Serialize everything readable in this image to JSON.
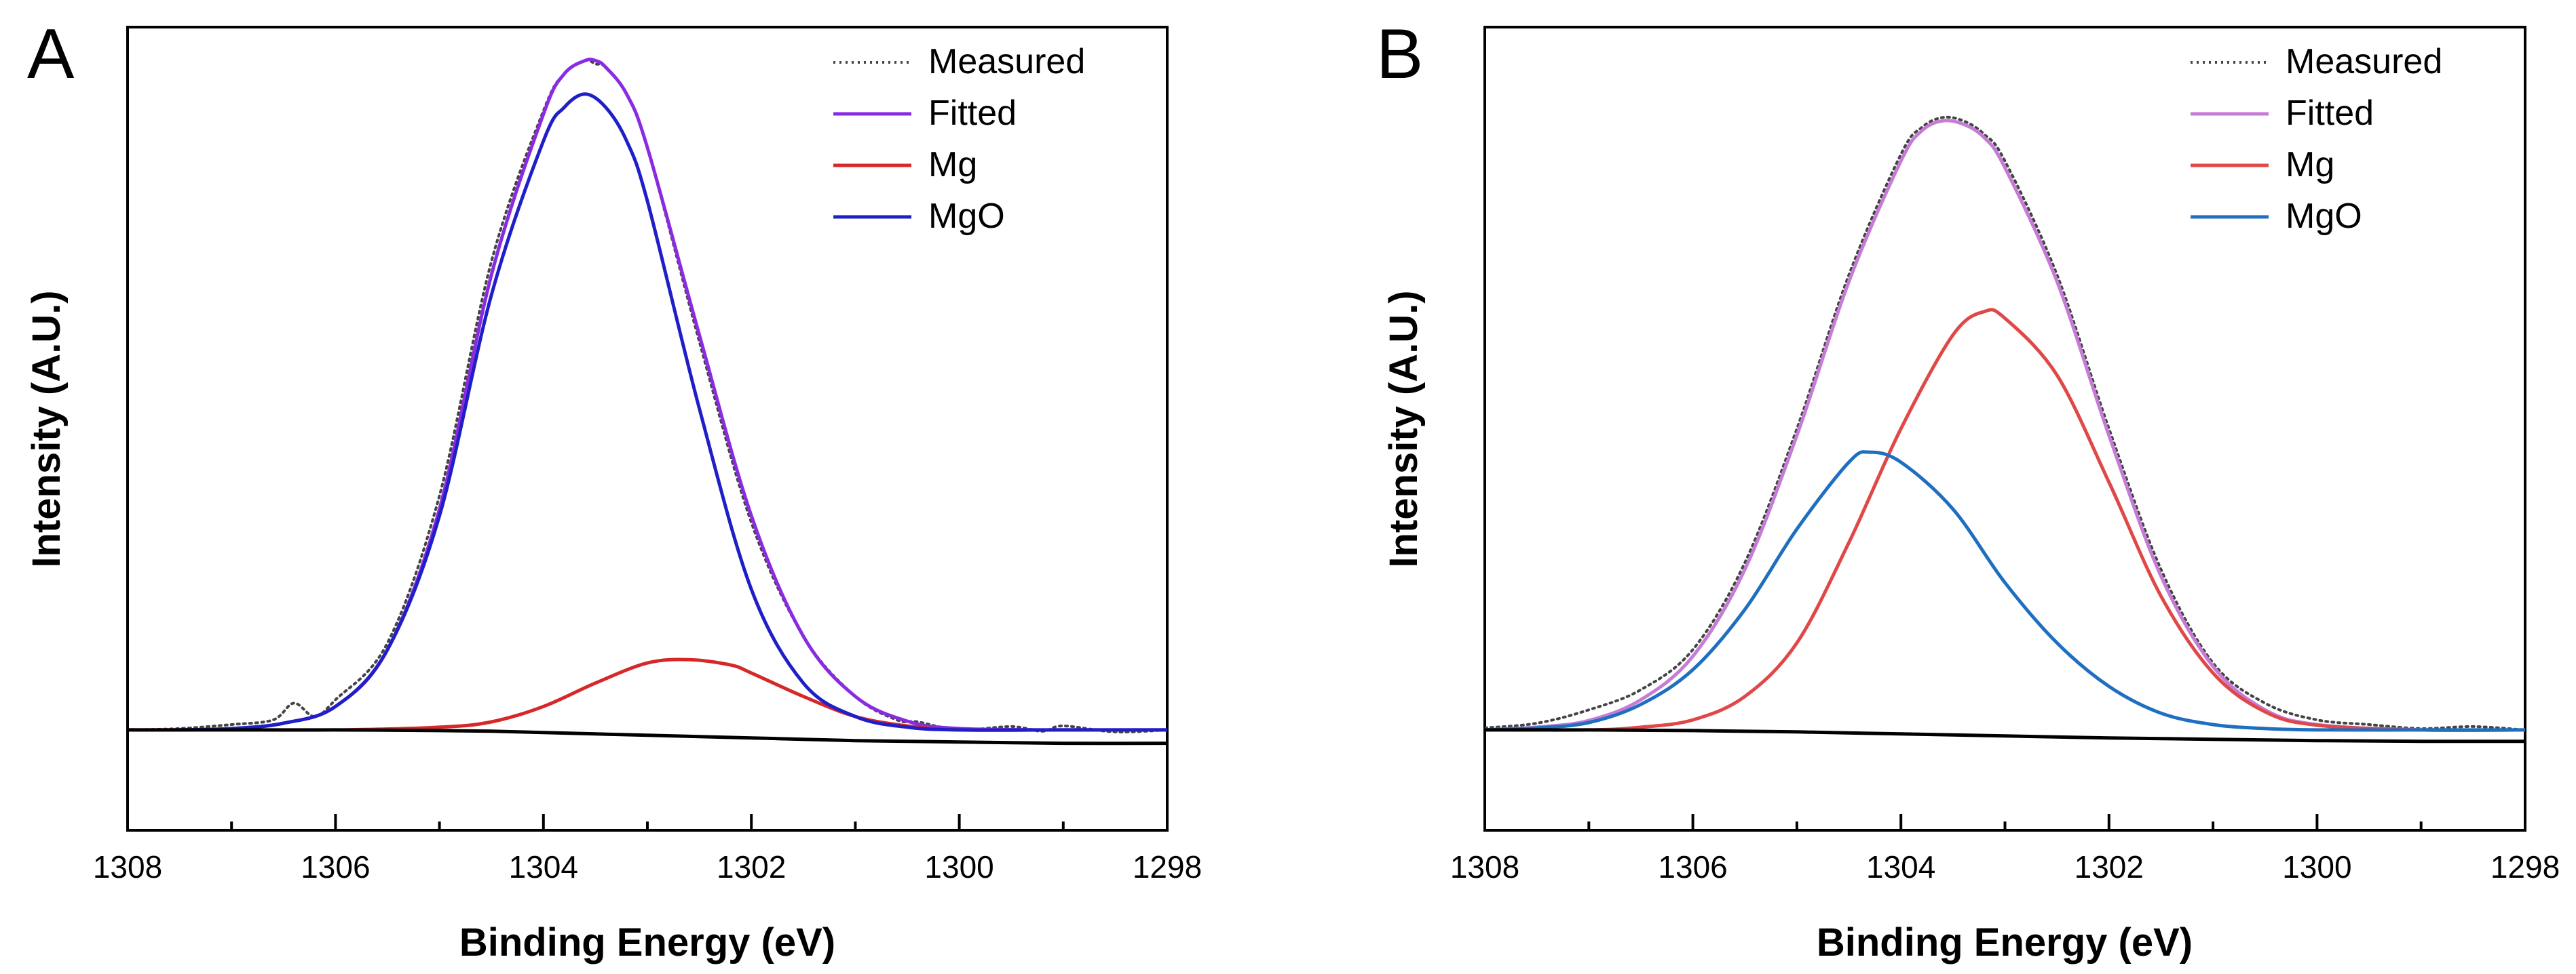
{
  "figure": {
    "panel_labels": [
      "A",
      "B"
    ]
  },
  "chart_data": [
    {
      "type": "line",
      "panel_label": "A",
      "title": "",
      "xlabel": "Binding Energy (eV)",
      "ylabel": "Intensity (A.U.)",
      "xlim": [
        1308,
        1298
      ],
      "x_reversed": true,
      "ylim": [
        -0.15,
        1.05
      ],
      "x_ticks": [
        1308,
        1306,
        1304,
        1302,
        1300,
        1298
      ],
      "x_tick_labels": [
        "1308",
        "1306",
        "1304",
        "1302",
        "1300",
        "1298"
      ],
      "grid": false,
      "legend": "top-right",
      "series": [
        {
          "name": "Measured",
          "style": "dotted",
          "color": "#444444",
          "x": [
            1308,
            1307.5,
            1307,
            1306.6,
            1306.4,
            1306.2,
            1306,
            1305.5,
            1305,
            1304.5,
            1304,
            1303.8,
            1303.6,
            1303.5,
            1303.4,
            1303.2,
            1303,
            1302.5,
            1302,
            1301.5,
            1301,
            1300.6,
            1300.4,
            1300,
            1299.5,
            1299.2,
            1299,
            1298.5,
            1298
          ],
          "y": [
            0.0,
            0.002,
            0.008,
            0.015,
            0.04,
            0.02,
            0.045,
            0.13,
            0.35,
            0.7,
            0.925,
            0.98,
            1.0,
            0.995,
            0.99,
            0.95,
            0.87,
            0.58,
            0.31,
            0.14,
            0.05,
            0.015,
            0.012,
            0.0,
            0.005,
            -0.002,
            0.006,
            -0.003,
            0.0
          ]
        },
        {
          "name": "Fitted",
          "style": "solid",
          "color": "#8a2be2",
          "x": [
            1308,
            1307.5,
            1307,
            1306.5,
            1306,
            1305.5,
            1305,
            1304.5,
            1304,
            1303.8,
            1303.6,
            1303.5,
            1303.4,
            1303.2,
            1303,
            1302.5,
            1302,
            1301.5,
            1301,
            1300.5,
            1300,
            1299,
            1298
          ],
          "y": [
            0.0,
            0.0,
            0.002,
            0.01,
            0.035,
            0.12,
            0.33,
            0.68,
            0.92,
            0.98,
            1.0,
            1.0,
            0.99,
            0.95,
            0.87,
            0.59,
            0.32,
            0.14,
            0.05,
            0.013,
            0.002,
            0.0,
            0.0
          ]
        },
        {
          "name": "Mg",
          "style": "solid",
          "color": "#d62828",
          "x": [
            1308,
            1307,
            1306,
            1305,
            1304.5,
            1304,
            1303.5,
            1303,
            1302.6,
            1302.2,
            1302,
            1301.5,
            1301,
            1300.5,
            1300,
            1299,
            1298
          ],
          "y": [
            0.0,
            0.0,
            0.0,
            0.004,
            0.012,
            0.035,
            0.07,
            0.1,
            0.105,
            0.097,
            0.085,
            0.05,
            0.02,
            0.006,
            0.0,
            0.0,
            0.0
          ]
        },
        {
          "name": "MgO",
          "style": "solid",
          "color": "#1f1fc8",
          "x": [
            1308,
            1307.5,
            1307,
            1306.5,
            1306,
            1305.5,
            1305,
            1304.5,
            1304,
            1303.8,
            1303.6,
            1303.4,
            1303.2,
            1303,
            1302.5,
            1302,
            1301.5,
            1301,
            1300.5,
            1300,
            1299,
            1298
          ],
          "y": [
            0.0,
            0.0,
            0.002,
            0.01,
            0.035,
            0.12,
            0.32,
            0.65,
            0.88,
            0.93,
            0.95,
            0.93,
            0.88,
            0.79,
            0.48,
            0.21,
            0.07,
            0.02,
            0.004,
            0.0,
            0.0,
            0.0
          ]
        },
        {
          "name": "Background",
          "style": "solid",
          "color": "#000000",
          "in_legend": false,
          "x": [
            1308,
            1307,
            1306,
            1305,
            1304.5,
            1304,
            1303.5,
            1303,
            1302.5,
            1302,
            1301.5,
            1301,
            1300,
            1299,
            1298
          ],
          "y": [
            0.0,
            0.0,
            0.0,
            -0.001,
            -0.002,
            -0.004,
            -0.006,
            -0.008,
            -0.01,
            -0.012,
            -0.014,
            -0.016,
            -0.018,
            -0.02,
            -0.02
          ]
        }
      ]
    },
    {
      "type": "line",
      "panel_label": "B",
      "title": "",
      "xlabel": "Binding Energy (eV)",
      "ylabel": "Intensity (A.U.)",
      "xlim": [
        1308,
        1298
      ],
      "x_reversed": true,
      "ylim": [
        -0.15,
        1.05
      ],
      "x_ticks": [
        1308,
        1306,
        1304,
        1302,
        1300,
        1298
      ],
      "x_tick_labels": [
        "1308",
        "1306",
        "1304",
        "1302",
        "1300",
        "1298"
      ],
      "grid": false,
      "legend": "top-right",
      "series": [
        {
          "name": "Measured",
          "style": "dotted",
          "color": "#444444",
          "x": [
            1308,
            1307.5,
            1307,
            1306.5,
            1306,
            1305.5,
            1305,
            1304.5,
            1304,
            1303.8,
            1303.6,
            1303.4,
            1303.2,
            1303,
            1302.5,
            1302,
            1301.5,
            1301,
            1300.5,
            1300,
            1299.5,
            1299,
            1298.5,
            1298
          ],
          "y": [
            0.003,
            0.01,
            0.03,
            0.06,
            0.12,
            0.25,
            0.45,
            0.68,
            0.86,
            0.9,
            0.915,
            0.91,
            0.89,
            0.85,
            0.68,
            0.45,
            0.24,
            0.1,
            0.04,
            0.015,
            0.008,
            0.002,
            0.005,
            0.0
          ]
        },
        {
          "name": "Fitted",
          "style": "solid",
          "color": "#c67bd6",
          "x": [
            1308,
            1307.5,
            1307,
            1306.5,
            1306,
            1305.5,
            1305,
            1304.5,
            1304,
            1303.8,
            1303.6,
            1303.4,
            1303.2,
            1303,
            1302.5,
            1302,
            1301.5,
            1301,
            1300.5,
            1300,
            1299,
            1298
          ],
          "y": [
            0.0,
            0.004,
            0.014,
            0.045,
            0.11,
            0.24,
            0.44,
            0.67,
            0.85,
            0.895,
            0.91,
            0.905,
            0.885,
            0.84,
            0.67,
            0.44,
            0.23,
            0.095,
            0.03,
            0.008,
            0.0,
            0.0
          ]
        },
        {
          "name": "Mg",
          "style": "solid",
          "color": "#e04848",
          "x": [
            1308,
            1307,
            1306.5,
            1306,
            1305.5,
            1305,
            1304.5,
            1304,
            1303.5,
            1303.2,
            1303,
            1302.5,
            1302,
            1301.5,
            1301,
            1300.5,
            1300,
            1299,
            1298
          ],
          "y": [
            0.0,
            0.0,
            0.004,
            0.015,
            0.05,
            0.13,
            0.28,
            0.45,
            0.59,
            0.625,
            0.615,
            0.53,
            0.37,
            0.2,
            0.085,
            0.027,
            0.007,
            0.0,
            0.0
          ]
        },
        {
          "name": "MgO",
          "style": "solid",
          "color": "#1f6fc0",
          "x": [
            1308,
            1307.5,
            1307,
            1306.5,
            1306,
            1305.5,
            1305,
            1304.5,
            1304.3,
            1304,
            1303.5,
            1303,
            1302.5,
            1302,
            1301.5,
            1301,
            1300.5,
            1300,
            1299,
            1298
          ],
          "y": [
            0.0,
            0.003,
            0.011,
            0.038,
            0.09,
            0.18,
            0.3,
            0.4,
            0.415,
            0.4,
            0.33,
            0.22,
            0.13,
            0.065,
            0.025,
            0.008,
            0.002,
            0.0,
            0.0,
            0.0
          ]
        },
        {
          "name": "Background",
          "style": "solid",
          "color": "#000000",
          "in_legend": false,
          "x": [
            1308,
            1307,
            1306,
            1305,
            1304,
            1303,
            1302,
            1301,
            1300,
            1299,
            1298
          ],
          "y": [
            0.0,
            0.0,
            -0.001,
            -0.003,
            -0.006,
            -0.009,
            -0.012,
            -0.014,
            -0.016,
            -0.017,
            -0.017
          ]
        }
      ]
    }
  ]
}
